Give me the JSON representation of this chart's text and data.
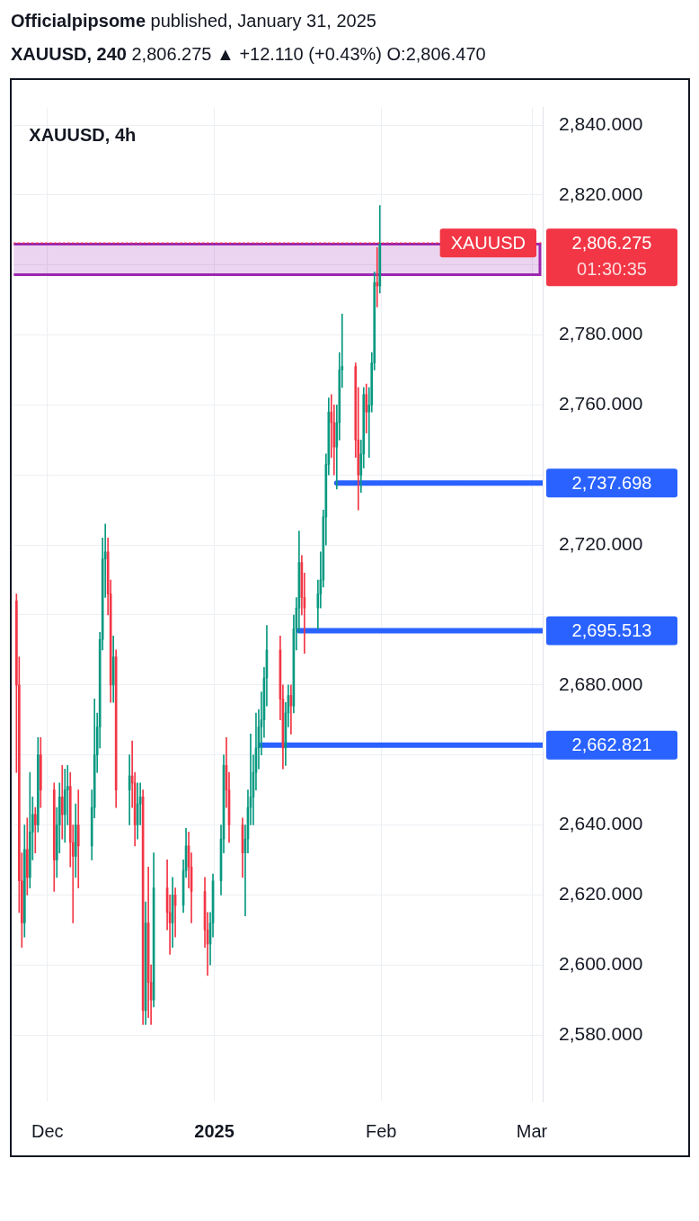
{
  "chart_data": {
    "type": "candlestick",
    "title": "Officialpipsome published, January 31, 2025",
    "subtitle": "XAUUSD, 240 2,806.275 ▲ +12.110 (+0.43%) O:2,806.470",
    "annotations": [
      "XAUUSD, 4h",
      "2,806.275",
      "01:30:35"
    ],
    "x": [
      "2024-11-25T06:00",
      "2024-11-25T18:00",
      "2024-11-26T06:00",
      "2024-11-26T18:00",
      "2024-11-27T06:00",
      "2024-11-27T18:00",
      "2024-11-28T06:00",
      "2024-11-28T18:00",
      "2024-11-29T06:00",
      "2024-11-29T18:00",
      "2024-12-02T06:00",
      "2024-12-02T18:00",
      "2024-12-03T06:00",
      "2024-12-03T18:00",
      "2024-12-04T06:00",
      "2024-12-04T18:00",
      "2024-12-05T06:00",
      "2024-12-05T18:00",
      "2024-12-06T06:00",
      "2024-12-06T18:00",
      "2024-12-09T06:00",
      "2024-12-09T18:00",
      "2024-12-10T06:00",
      "2024-12-10T18:00",
      "2024-12-11T06:00",
      "2024-12-11T18:00",
      "2024-12-12T06:00",
      "2024-12-12T18:00",
      "2024-12-13T06:00",
      "2024-12-13T18:00",
      "2024-12-16T06:00",
      "2024-12-16T18:00",
      "2024-12-17T06:00",
      "2024-12-17T18:00",
      "2024-12-18T06:00",
      "2024-12-18T18:00",
      "2024-12-19T06:00",
      "2024-12-19T18:00",
      "2024-12-20T06:00",
      "2024-12-20T18:00",
      "2024-12-23T06:00",
      "2024-12-23T18:00",
      "2024-12-24T06:00",
      "2024-12-24T18:00",
      "2024-12-26T06:00",
      "2024-12-26T18:00",
      "2024-12-27T06:00",
      "2024-12-27T18:00",
      "2024-12-30T06:00",
      "2024-12-30T18:00",
      "2024-12-31T06:00",
      "2024-12-31T18:00",
      "2025-01-02T06:00",
      "2025-01-02T18:00",
      "2025-01-03T06:00",
      "2025-01-03T18:00",
      "2025-01-06T06:00",
      "2025-01-06T18:00",
      "2025-01-07T06:00",
      "2025-01-07T18:00",
      "2025-01-08T06:00",
      "2025-01-08T18:00",
      "2025-01-09T06:00",
      "2025-01-09T18:00",
      "2025-01-10T06:00",
      "2025-01-10T18:00",
      "2025-01-13T06:00",
      "2025-01-13T18:00",
      "2025-01-14T06:00",
      "2025-01-14T18:00",
      "2025-01-15T06:00",
      "2025-01-15T18:00",
      "2025-01-16T06:00",
      "2025-01-16T18:00",
      "2025-01-17T06:00",
      "2025-01-17T18:00",
      "2025-01-20T06:00",
      "2025-01-20T18:00",
      "2025-01-21T06:00",
      "2025-01-21T18:00",
      "2025-01-22T06:00",
      "2025-01-22T18:00",
      "2025-01-23T06:00",
      "2025-01-23T18:00",
      "2025-01-24T06:00",
      "2025-01-24T18:00",
      "2025-01-27T06:00",
      "2025-01-27T18:00",
      "2025-01-28T06:00",
      "2025-01-28T18:00",
      "2025-01-29T06:00",
      "2025-01-29T18:00",
      "2025-01-30T06:00",
      "2025-01-30T18:00",
      "2025-01-31T06:00",
      "2025-01-31T18:00"
    ],
    "ohlc": [
      [
        2704,
        2706,
        2655,
        2680
      ],
      [
        2680,
        2688,
        2615,
        2624
      ],
      [
        2624,
        2632,
        2605,
        2612
      ],
      [
        2612,
        2640,
        2608,
        2633
      ],
      [
        2633,
        2642,
        2620,
        2625
      ],
      [
        2625,
        2655,
        2622,
        2638
      ],
      [
        2638,
        2648,
        2630,
        2643
      ],
      [
        2643,
        2645,
        2632,
        2640
      ],
      [
        2640,
        2665,
        2638,
        2660
      ],
      [
        2660,
        2665,
        2645,
        2650
      ],
      [
        2650,
        2652,
        2621,
        2630
      ],
      [
        2630,
        2645,
        2625,
        2640
      ],
      [
        2640,
        2652,
        2632,
        2648
      ],
      [
        2648,
        2657,
        2636,
        2643
      ],
      [
        2643,
        2656,
        2635,
        2650
      ],
      [
        2650,
        2657,
        2640,
        2651
      ],
      [
        2651,
        2655,
        2628,
        2635
      ],
      [
        2635,
        2640,
        2612,
        2631
      ],
      [
        2631,
        2646,
        2625,
        2640
      ],
      [
        2640,
        2650,
        2622,
        2634
      ],
      [
        2634,
        2650,
        2630,
        2645
      ],
      [
        2645,
        2676,
        2642,
        2660
      ],
      [
        2660,
        2672,
        2655,
        2668
      ],
      [
        2668,
        2695,
        2662,
        2693
      ],
      [
        2693,
        2722,
        2690,
        2716
      ],
      [
        2716,
        2726,
        2705,
        2718
      ],
      [
        2718,
        2722,
        2700,
        2706
      ],
      [
        2706,
        2710,
        2675,
        2680
      ],
      [
        2680,
        2694,
        2675,
        2688
      ],
      [
        2688,
        2690,
        2645,
        2650
      ],
      [
        2650,
        2660,
        2640,
        2654
      ],
      [
        2654,
        2664,
        2645,
        2652
      ],
      [
        2652,
        2655,
        2634,
        2640
      ],
      [
        2640,
        2652,
        2636,
        2646
      ],
      [
        2646,
        2652,
        2640,
        2648
      ],
      [
        2648,
        2650,
        2583,
        2587
      ],
      [
        2587,
        2618,
        2583,
        2612
      ],
      [
        2612,
        2628,
        2585,
        2595
      ],
      [
        2595,
        2600,
        2583,
        2590
      ],
      [
        2590,
        2632,
        2588,
        2622
      ],
      [
        2622,
        2630,
        2610,
        2615
      ],
      [
        2615,
        2620,
        2603,
        2612
      ],
      [
        2612,
        2625,
        2605,
        2620
      ],
      [
        2620,
        2622,
        2608,
        2617
      ],
      [
        2617,
        2630,
        2615,
        2627
      ],
      [
        2627,
        2639,
        2625,
        2634
      ],
      [
        2634,
        2638,
        2622,
        2628
      ],
      [
        2628,
        2632,
        2612,
        2621
      ],
      [
        2621,
        2625,
        2605,
        2610
      ],
      [
        2610,
        2615,
        2597,
        2606
      ],
      [
        2606,
        2615,
        2600,
        2612
      ],
      [
        2612,
        2626,
        2608,
        2624
      ],
      [
        2624,
        2640,
        2620,
        2636
      ],
      [
        2636,
        2660,
        2632,
        2657
      ],
      [
        2657,
        2665,
        2645,
        2650
      ],
      [
        2650,
        2655,
        2635,
        2640
      ],
      [
        2640,
        2642,
        2625,
        2632
      ],
      [
        2632,
        2640,
        2614,
        2636
      ],
      [
        2636,
        2650,
        2632,
        2645
      ],
      [
        2645,
        2666,
        2640,
        2648
      ],
      [
        2648,
        2660,
        2640,
        2655
      ],
      [
        2655,
        2672,
        2650,
        2662
      ],
      [
        2662,
        2673,
        2656,
        2668
      ],
      [
        2668,
        2678,
        2660,
        2670
      ],
      [
        2670,
        2685,
        2665,
        2682
      ],
      [
        2682,
        2697,
        2674,
        2690
      ],
      [
        2690,
        2694,
        2670,
        2676
      ],
      [
        2676,
        2680,
        2656,
        2662
      ],
      [
        2662,
        2675,
        2657,
        2672
      ],
      [
        2672,
        2680,
        2668,
        2677
      ],
      [
        2677,
        2680,
        2666,
        2674
      ],
      [
        2674,
        2700,
        2672,
        2696
      ],
      [
        2696,
        2705,
        2690,
        2702
      ],
      [
        2702,
        2724,
        2695,
        2715
      ],
      [
        2715,
        2717,
        2700,
        2705
      ],
      [
        2705,
        2712,
        2689,
        2702
      ],
      [
        2702,
        2710,
        2696,
        2706
      ],
      [
        2706,
        2718,
        2702,
        2710
      ],
      [
        2710,
        2730,
        2708,
        2728
      ],
      [
        2728,
        2746,
        2720,
        2743
      ],
      [
        2743,
        2762,
        2740,
        2758
      ],
      [
        2758,
        2763,
        2745,
        2755
      ],
      [
        2755,
        2760,
        2740,
        2748
      ],
      [
        2748,
        2760,
        2736,
        2755
      ],
      [
        2755,
        2775,
        2750,
        2770
      ],
      [
        2770,
        2786,
        2765,
        2771
      ],
      [
        2771,
        2772,
        2745,
        2750
      ],
      [
        2750,
        2765,
        2730,
        2740
      ],
      [
        2740,
        2750,
        2735,
        2746
      ],
      [
        2746,
        2765,
        2742,
        2763
      ],
      [
        2763,
        2766,
        2752,
        2758
      ],
      [
        2758,
        2765,
        2745,
        2760
      ],
      [
        2760,
        2775,
        2758,
        2772
      ],
      [
        2772,
        2798,
        2770,
        2795
      ],
      [
        2795,
        2805,
        2788,
        2794
      ],
      [
        2794,
        2817,
        2792,
        2806.275
      ]
    ],
    "colors": [
      "#f23645",
      "#f23645",
      "#f23645",
      "#089981",
      "#f23645",
      "#089981",
      "#089981",
      "#f23645",
      "#089981",
      "#f23645",
      "#f23645",
      "#089981",
      "#089981",
      "#f23645",
      "#089981",
      "#089981",
      "#f23645",
      "#f23645",
      "#089981",
      "#f23645",
      "#089981",
      "#089981",
      "#089981",
      "#089981",
      "#089981",
      "#089981",
      "#f23645",
      "#f23645",
      "#089981",
      "#f23645",
      "#089981",
      "#f23645",
      "#f23645",
      "#089981",
      "#089981",
      "#f23645",
      "#089981",
      "#f23645",
      "#f23645",
      "#089981",
      "#f23645",
      "#f23645",
      "#089981",
      "#f23645",
      "#089981",
      "#089981",
      "#f23645",
      "#f23645",
      "#f23645",
      "#f23645",
      "#089981",
      "#089981",
      "#089981",
      "#089981",
      "#f23645",
      "#f23645",
      "#f23645",
      "#089981",
      "#089981",
      "#089981",
      "#089981",
      "#089981",
      "#089981",
      "#089981",
      "#089981",
      "#089981",
      "#f23645",
      "#f23645",
      "#089981",
      "#089981",
      "#f23645",
      "#089981",
      "#089981",
      "#089981",
      "#f23645",
      "#f23645",
      "#089981",
      "#089981",
      "#089981",
      "#089981",
      "#089981",
      "#f23645",
      "#f23645",
      "#089981",
      "#089981",
      "#089981",
      "#f23645",
      "#f23645",
      "#089981",
      "#089981",
      "#f23645",
      "#089981",
      "#089981",
      "#089981",
      "#f23645",
      "#089981"
    ],
    "series": [
      {
        "type": "line",
        "color": "#2962ff",
        "x": [
          "2025-01-23T18:00",
          "2025-03-03T00:00"
        ],
        "values": [
          2737.698,
          2737.698
        ],
        "value_labels": [
          null,
          "2,737.698"
        ]
      },
      {
        "type": "line",
        "color": "#2962ff",
        "x": [
          "2025-01-16T18:00",
          "2025-03-03T00:00"
        ],
        "values": [
          2695.513,
          2695.513
        ],
        "value_labels": [
          null,
          "2,695.513"
        ]
      },
      {
        "type": "line",
        "color": "#2962ff",
        "x": [
          "2025-01-09T18:00",
          "2025-03-03T00:00"
        ],
        "values": [
          2662.821,
          2662.821
        ],
        "value_labels": [
          null,
          "2,662.821"
        ]
      }
    ],
    "bands": [
      {
        "axis": "y",
        "from": 2797.25,
        "to": 2806,
        "color": "#9c27b0"
      }
    ],
    "ref_lines": [
      {
        "axis": "y",
        "value": 2806.275,
        "label": "XAUUSD",
        "color": "#f23645",
        "line_style": "dotted"
      }
    ],
    "xlim": [
      "2024-11-24T18:00",
      "2025-03-03T00:00"
    ],
    "xticks": [
      {
        "value": "2024-12-01",
        "label": "Dec"
      },
      {
        "value": "2025-01-01",
        "label": "2025"
      },
      {
        "value": "2025-02-01",
        "label": "Feb"
      },
      {
        "value": "2025-03-01",
        "label": "Mar"
      }
    ],
    "ylim": [
      2561,
      2845
    ],
    "yticks": [
      {
        "value": 2580,
        "label": "2,580.000"
      },
      {
        "value": 2600,
        "label": "2,600.000"
      },
      {
        "value": 2620,
        "label": "2,620.000"
      },
      {
        "value": 2640,
        "label": "2,640.000"
      },
      {
        "value": 2660,
        "label": null
      },
      {
        "value": 2680,
        "label": "2,680.000"
      },
      {
        "value": 2700,
        "label": null
      },
      {
        "value": 2720,
        "label": "2,720.000"
      },
      {
        "value": 2740,
        "label": null
      },
      {
        "value": 2760,
        "label": "2,760.000"
      },
      {
        "value": 2780,
        "label": "2,780.000"
      },
      {
        "value": 2800,
        "label": null
      },
      {
        "value": 2820,
        "label": "2,820.000"
      },
      {
        "value": 2840,
        "label": "2,840.000"
      }
    ],
    "grid": true
  }
}
